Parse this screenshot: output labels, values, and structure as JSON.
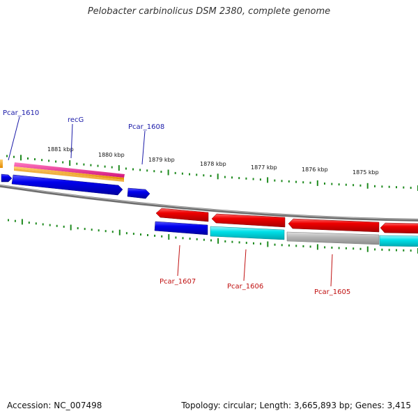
{
  "title": "Pelobacter carbinolicus DSM 2380, complete genome",
  "footer": {
    "accession": "Accession: NC_007498",
    "summary": "Topology: circular; Length: 3,665,893 bp; Genes: 3,415"
  },
  "scale_labels": [
    "1881 kbp",
    "1880 kbp",
    "1879 kbp",
    "1878 kbp",
    "1877 kbp",
    "1876 kbp",
    "1875 kbp"
  ],
  "gene_labels_top": [
    "Pcar_1610",
    "recG",
    "Pcar_1608"
  ],
  "gene_labels_bottom": [
    "Pcar_1607",
    "Pcar_1606",
    "Pcar_1605"
  ],
  "colors": {
    "forward_label": "#1a1aa8",
    "reverse_label": "#c01010",
    "tick": "#1e8a1e",
    "backbone": "#7a7a7a",
    "cds_blue": "#0000ee",
    "cds_red": "#ee0000",
    "cds_cyan": "#00e0e8",
    "cds_gray": "#b5b5b5",
    "magenta": "#ee1d8e",
    "orange": "#f4a300"
  }
}
